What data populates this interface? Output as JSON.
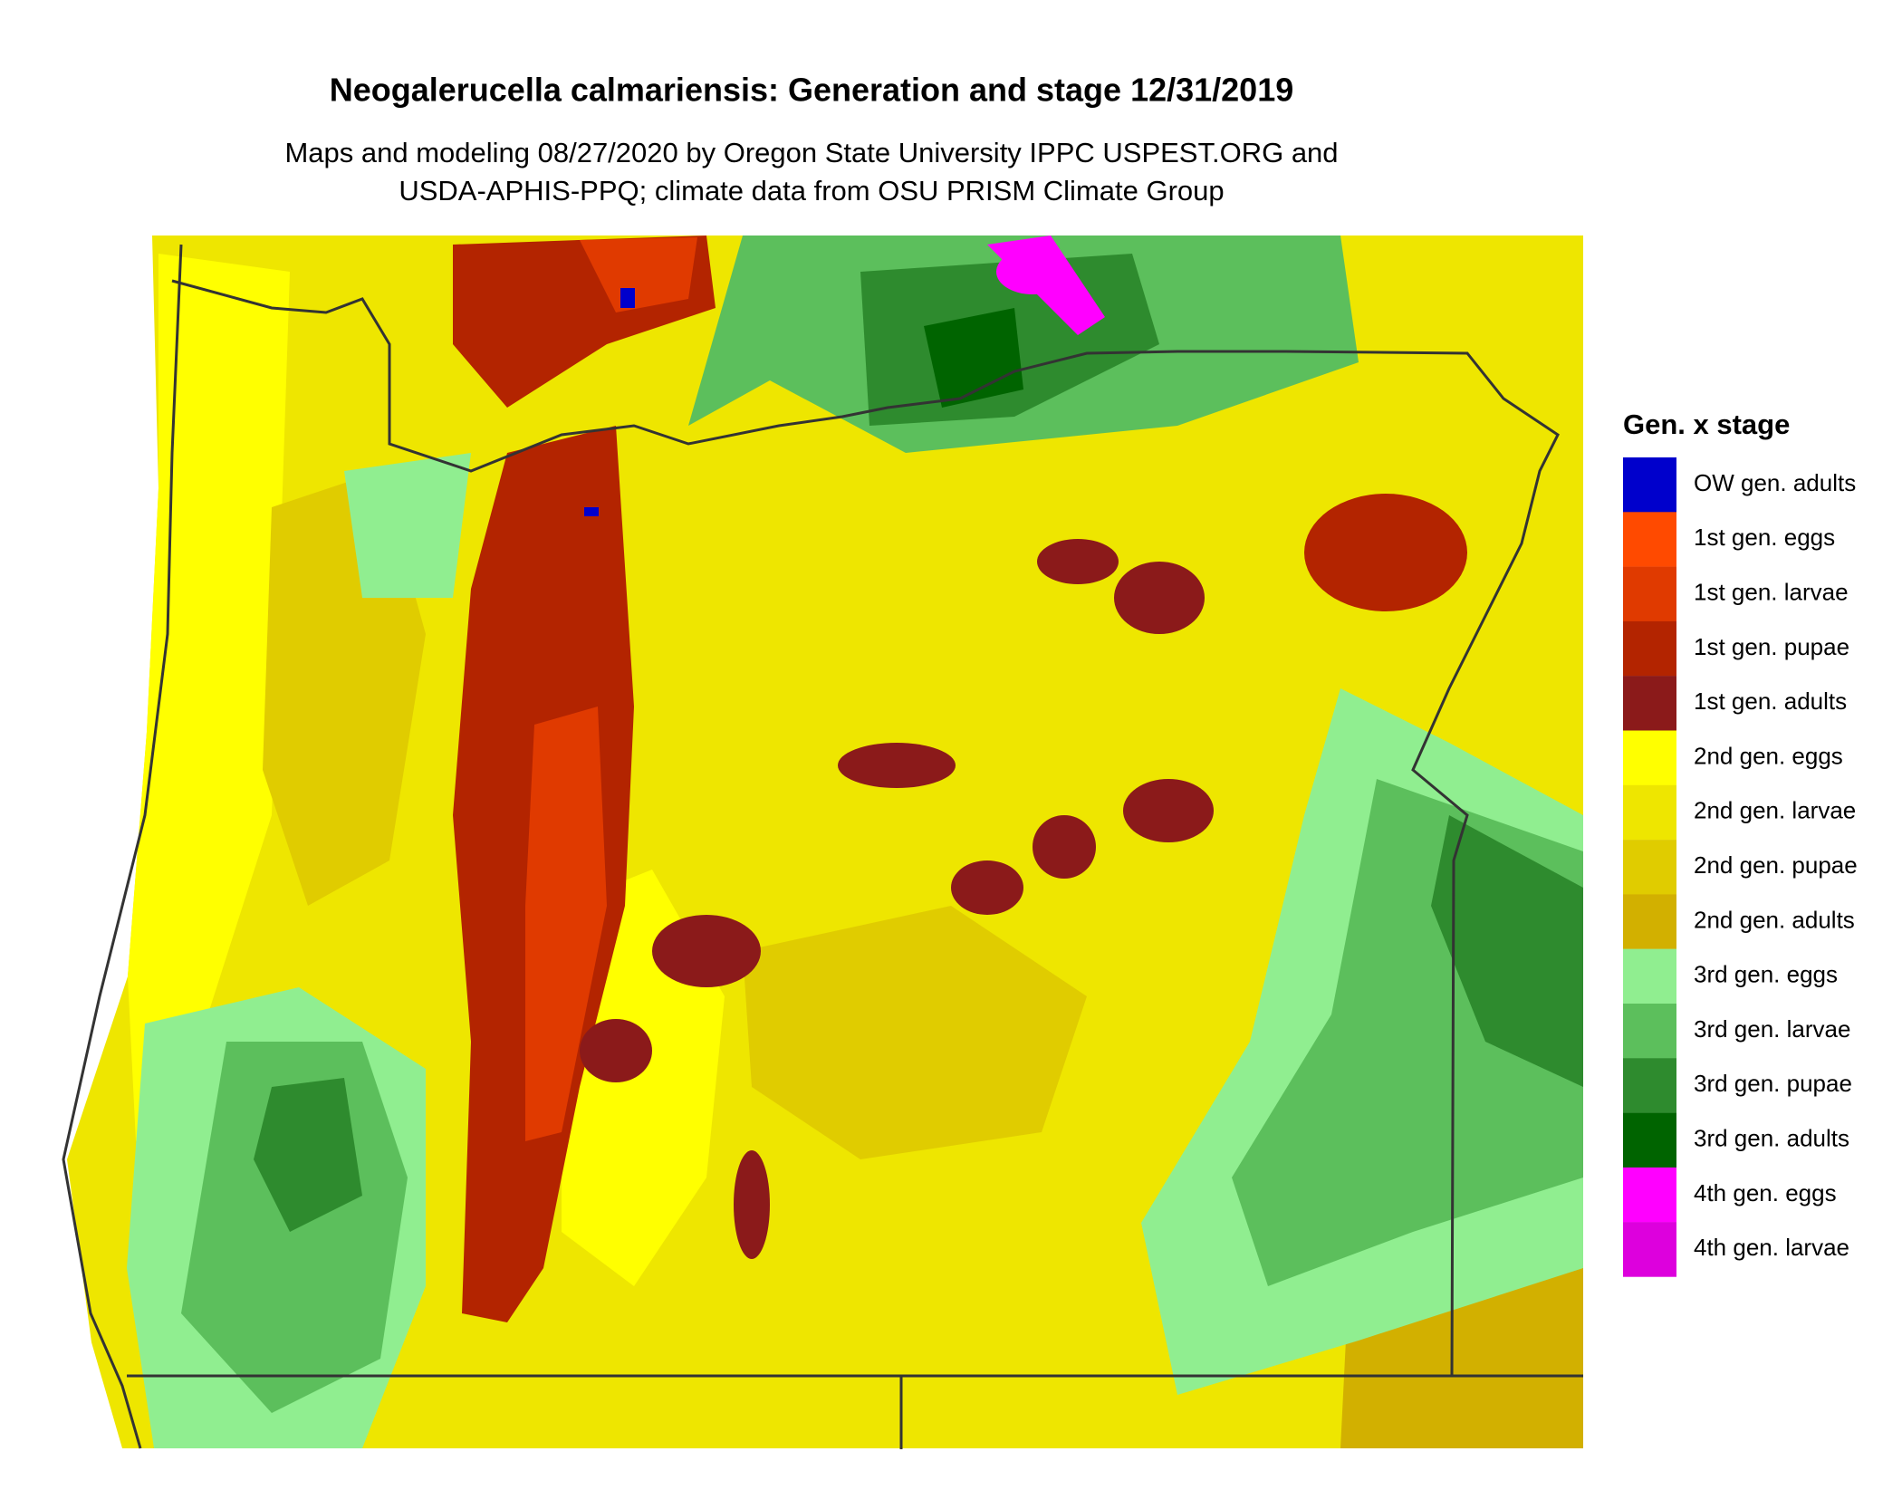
{
  "title": "Neogalerucella calmariensis: Generation and stage 12/31/2019",
  "subtitle": [
    "Maps and modeling 08/27/2020 by Oregon State University IPPC USPEST.ORG and",
    "USDA-APHIS-PPQ; climate data from OSU PRISM Climate Group"
  ],
  "legend": {
    "title": "Gen. x stage",
    "items": [
      {
        "label": "OW gen. adults",
        "color": "#0000cc"
      },
      {
        "label": "1st gen. eggs",
        "color": "#ff4a00"
      },
      {
        "label": "1st gen. larvae",
        "color": "#e03a00"
      },
      {
        "label": "1st gen. pupae",
        "color": "#b32400"
      },
      {
        "label": "1st gen. adults",
        "color": "#8b1a1a"
      },
      {
        "label": "2nd gen. eggs",
        "color": "#ffff00"
      },
      {
        "label": "2nd gen. larvae",
        "color": "#eee600"
      },
      {
        "label": "2nd gen. pupae",
        "color": "#e0cc00"
      },
      {
        "label": "2nd gen. adults",
        "color": "#d2b000"
      },
      {
        "label": "3rd gen. eggs",
        "color": "#90ee90"
      },
      {
        "label": "3rd gen. larvae",
        "color": "#5cbf5c"
      },
      {
        "label": "3rd gen. pupae",
        "color": "#2e8b2e"
      },
      {
        "label": "3rd gen. adults",
        "color": "#006400"
      },
      {
        "label": "4th gen. eggs",
        "color": "#ff00ff"
      },
      {
        "label": "4th gen. larvae",
        "color": "#dd00dd"
      }
    ]
  }
}
